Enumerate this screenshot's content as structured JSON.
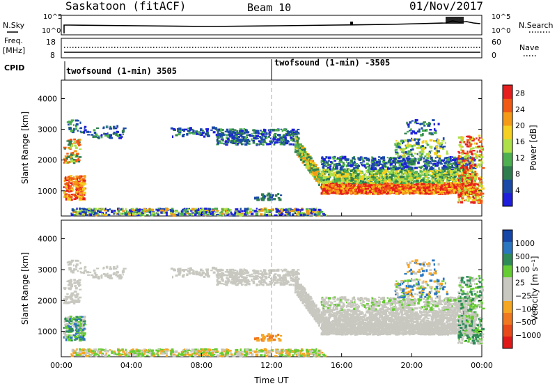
{
  "header": {
    "radar": "Saskatoon (fitACF)",
    "beam": "Beam 10",
    "date": "01/Nov/2017"
  },
  "noise_panel": {
    "left_label": "N.Sky",
    "right_label": "N.Search",
    "left_ticks": [
      "10^5",
      "10^0"
    ],
    "right_ticks": [
      "10^5",
      "10^0"
    ]
  },
  "freq_panel": {
    "left_label_1": "Freq.",
    "left_label_2": "[MHz]",
    "right_label": "Nave",
    "left_ticks": [
      "18",
      "8"
    ],
    "right_ticks": [
      "60",
      "0"
    ]
  },
  "cpid_panel": {
    "label": "CPID",
    "program_1": "twofsound (1-min) 3505",
    "program_2": "twofsound (1-min) -3505"
  },
  "colors": {
    "power_scale": [
      "#1e1edc",
      "#1a49a8",
      "#2e7d4f",
      "#4caf50",
      "#aee04a",
      "#f5d020",
      "#f59a16",
      "#f05a14",
      "#e61e1e"
    ],
    "velocity_scale": [
      "#1546a8",
      "#2a76c0",
      "#2e8b57",
      "#66cc33",
      "#c8c8c0",
      "#c8c8c0",
      "#f5a623",
      "#f07820",
      "#e84a1a",
      "#e01818"
    ],
    "ground_scatter": "#c8c8c0"
  },
  "chart_data": [
    {
      "type": "heatmap",
      "title": "",
      "xlabel": "",
      "ylabel": "Slant Range [km]",
      "x_ticks": [
        "00:00",
        "04:00",
        "08:00",
        "12:00",
        "16:00",
        "20:00",
        "00:00"
      ],
      "xlim_hours": [
        0,
        24
      ],
      "y_ticks": [
        "1000",
        "2000",
        "3000",
        "4000"
      ],
      "ylim": [
        180,
        4600
      ],
      "colorbar_label": "Power [dB]",
      "colorbar_ticks": [
        "4",
        "8",
        "12",
        "16",
        "20",
        "24",
        "28"
      ],
      "colorbar_range": [
        0,
        30
      ]
    },
    {
      "type": "heatmap",
      "title": "",
      "xlabel": "Time UT",
      "ylabel": "Slant Range [km]",
      "x_ticks": [
        "00:00",
        "04:00",
        "08:00",
        "12:00",
        "16:00",
        "20:00",
        "00:00"
      ],
      "xlim_hours": [
        0,
        24
      ],
      "y_ticks": [
        "1000",
        "2000",
        "3000",
        "4000"
      ],
      "ylim": [
        180,
        4600
      ],
      "colorbar_label": "Velocity [m s⁻¹]",
      "colorbar_ticks": [
        "1000",
        "500",
        "100",
        "25",
        "−25",
        "−100",
        "−500",
        "−1000"
      ]
    }
  ]
}
